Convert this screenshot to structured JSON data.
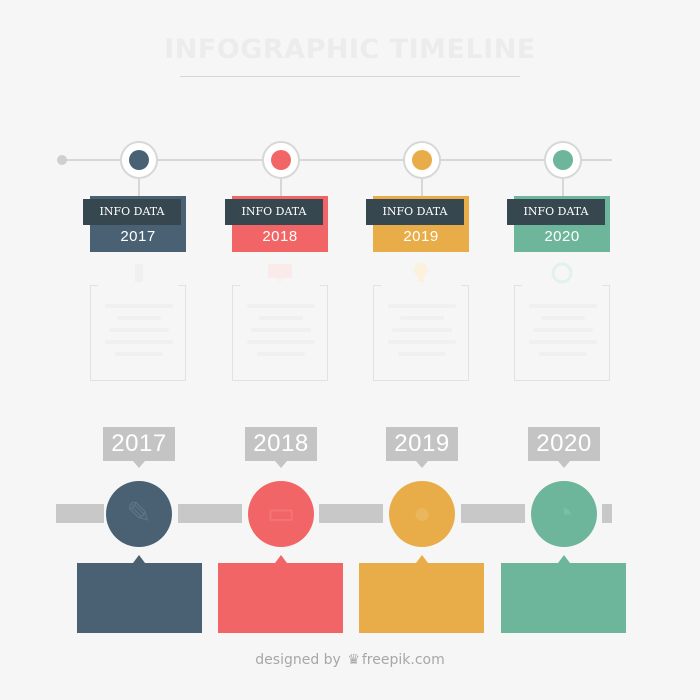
{
  "title": "INFOGRAPHIC TIMELINE",
  "colors": {
    "background": "#f6f6f6",
    "tag": "#37474f",
    "line": "#d7d7d7",
    "bar": "#c8c8c8",
    "year_label": "#c4c4c4"
  },
  "milestones": [
    {
      "year": "2017",
      "tag": "INFO DATA",
      "color": "#4a6173",
      "icon": "pencil-icon"
    },
    {
      "year": "2018",
      "tag": "INFO DATA",
      "color": "#f26566",
      "icon": "monitor-icon"
    },
    {
      "year": "2019",
      "tag": "INFO DATA",
      "color": "#e8ad48",
      "icon": "map-pin-icon"
    },
    {
      "year": "2020",
      "tag": "INFO DATA",
      "color": "#6db59b",
      "icon": "pie-chart-icon"
    }
  ],
  "credit": {
    "designed_by": "designed by",
    "brand": "freepik.com"
  }
}
